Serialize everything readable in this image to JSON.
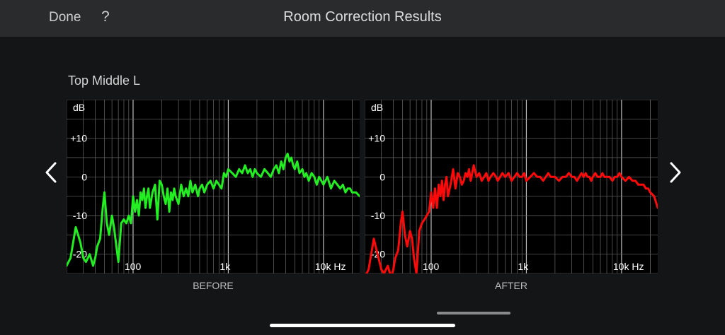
{
  "header": {
    "done_label": "Done",
    "help_label": "?",
    "title": "Room Correction Results"
  },
  "speaker_label": "Top Middle L",
  "nav": {
    "prev_icon": "chevron-left-icon",
    "next_icon": "chevron-right-icon"
  },
  "colors": {
    "before": "#22ee22",
    "after": "#ff0a0a",
    "grid": "#6a6a6a",
    "plot_bg": "#000000"
  },
  "chart_data": [
    {
      "type": "line",
      "title": "",
      "xlabel": "BEFORE",
      "ylabel": "dB",
      "x_scale": "log",
      "xlim": [
        20,
        24000
      ],
      "ylim": [
        -25,
        20
      ],
      "x_tick_labels": [
        "100",
        "1k",
        "10k Hz"
      ],
      "x_ticks": [
        100,
        1000,
        10000
      ],
      "y_tick_labels": [
        "+10",
        "0",
        "-10",
        "-20"
      ],
      "y_ticks": [
        10,
        0,
        -10,
        -20
      ],
      "grid": true,
      "series": [
        {
          "color": "#22ee22",
          "x": [
            20,
            22,
            25,
            28,
            30,
            32,
            35,
            38,
            40,
            42,
            45,
            48,
            50,
            53,
            56,
            60,
            63,
            66,
            70,
            75,
            80,
            85,
            90,
            95,
            100,
            105,
            110,
            115,
            120,
            125,
            130,
            135,
            140,
            145,
            150,
            160,
            170,
            180,
            190,
            200,
            210,
            220,
            230,
            240,
            250,
            260,
            270,
            280,
            300,
            320,
            340,
            360,
            380,
            400,
            420,
            450,
            480,
            500,
            530,
            560,
            600,
            650,
            700,
            750,
            800,
            850,
            900,
            950,
            1000,
            1100,
            1200,
            1300,
            1400,
            1500,
            1600,
            1700,
            1800,
            1900,
            2000,
            2200,
            2400,
            2600,
            2800,
            3000,
            3200,
            3400,
            3600,
            3800,
            4000,
            4200,
            4400,
            4600,
            4800,
            5000,
            5300,
            5600,
            6000,
            6300,
            6600,
            7000,
            7500,
            8000,
            8500,
            9000,
            9500,
            10000,
            11000,
            12000,
            13000,
            14000,
            15000,
            16000,
            17000,
            18000,
            19000,
            20000,
            22000,
            24000
          ],
          "y": [
            -23,
            -21,
            -13,
            -17,
            -21,
            -22,
            -20,
            -23,
            -21,
            -18,
            -16,
            -8,
            -4,
            -12,
            -15,
            -10,
            -13,
            -17,
            -22,
            -12,
            -11,
            -12,
            -10,
            -12,
            -5,
            -9,
            -6,
            -10,
            -4,
            -6,
            -3,
            -8,
            -5,
            -3,
            -8,
            -4,
            -2,
            -11,
            -1,
            -2,
            -5,
            -7,
            -3,
            -9,
            -4,
            -6,
            -3,
            -5,
            -7,
            -2,
            -5,
            -3,
            -5,
            -1,
            -4,
            -2,
            -5,
            -3,
            -2,
            -4,
            -2,
            -1,
            -3,
            -1,
            -2,
            -3,
            1,
            0,
            2,
            1,
            0,
            2,
            1,
            3,
            1,
            2,
            0,
            2,
            1,
            0,
            2,
            1,
            0,
            2,
            3,
            1,
            4,
            2,
            5,
            6,
            4,
            5,
            3,
            2,
            4,
            1,
            2,
            0,
            1,
            -1,
            1,
            0,
            -2,
            0,
            -1,
            -2,
            0,
            -3,
            -1,
            -2,
            -3,
            -2,
            -4,
            -3,
            -3,
            -4,
            -4,
            -5
          ]
        }
      ]
    },
    {
      "type": "line",
      "title": "",
      "xlabel": "AFTER",
      "ylabel": "dB",
      "x_scale": "log",
      "xlim": [
        20,
        24000
      ],
      "ylim": [
        -25,
        20
      ],
      "x_tick_labels": [
        "100",
        "1k",
        "10k Hz"
      ],
      "x_ticks": [
        100,
        1000,
        10000
      ],
      "y_tick_labels": [
        "+10",
        "0",
        "-10",
        "-20"
      ],
      "y_ticks": [
        10,
        0,
        -10,
        -20
      ],
      "grid": true,
      "series": [
        {
          "color": "#ff0a0a",
          "x": [
            20,
            22,
            25,
            28,
            30,
            32,
            35,
            38,
            40,
            42,
            45,
            48,
            50,
            53,
            56,
            60,
            63,
            66,
            70,
            75,
            80,
            85,
            90,
            95,
            100,
            105,
            110,
            115,
            120,
            125,
            130,
            135,
            140,
            145,
            150,
            160,
            170,
            180,
            190,
            200,
            210,
            220,
            230,
            240,
            250,
            260,
            270,
            280,
            300,
            320,
            340,
            360,
            380,
            400,
            420,
            450,
            480,
            500,
            530,
            560,
            600,
            650,
            700,
            750,
            800,
            850,
            900,
            950,
            1000,
            1100,
            1200,
            1300,
            1400,
            1500,
            1600,
            1700,
            1800,
            1900,
            2000,
            2200,
            2400,
            2600,
            2800,
            3000,
            3200,
            3400,
            3600,
            3800,
            4000,
            4200,
            4400,
            4600,
            4800,
            5000,
            5300,
            5600,
            6000,
            6300,
            6600,
            7000,
            7500,
            8000,
            8500,
            9000,
            9500,
            10000,
            11000,
            12000,
            13000,
            14000,
            15000,
            16000,
            17000,
            18000,
            19000,
            20000,
            22000,
            24000
          ],
          "y": [
            -26,
            -24,
            -16,
            -21,
            -24,
            -25,
            -23,
            -26,
            -24,
            -21,
            -19,
            -12,
            -9,
            -15,
            -18,
            -14,
            -16,
            -21,
            -25,
            -14,
            -12,
            -11,
            -10,
            -9,
            -4,
            -8,
            -3,
            -8,
            -2,
            -5,
            -1,
            -6,
            -2,
            0,
            -5,
            -2,
            2,
            -3,
            1,
            0,
            -2,
            -1,
            1,
            0,
            2,
            -1,
            1,
            3,
            0,
            1,
            -1,
            0,
            1,
            -1,
            0,
            1,
            0,
            -1,
            0,
            1,
            0,
            1,
            -1,
            0,
            1,
            0,
            0,
            1,
            -1,
            0,
            1,
            0,
            0,
            -1,
            0,
            1,
            0,
            0,
            0,
            -1,
            0,
            0,
            1,
            0,
            0,
            -1,
            0,
            1,
            0,
            1,
            0,
            0,
            -1,
            0,
            1,
            0,
            0,
            1,
            0,
            0,
            0,
            -1,
            0,
            0,
            1,
            0,
            -1,
            0,
            -1,
            -1,
            -2,
            -2,
            -2,
            -3,
            -3,
            -4,
            -5,
            -8
          ]
        }
      ]
    }
  ]
}
